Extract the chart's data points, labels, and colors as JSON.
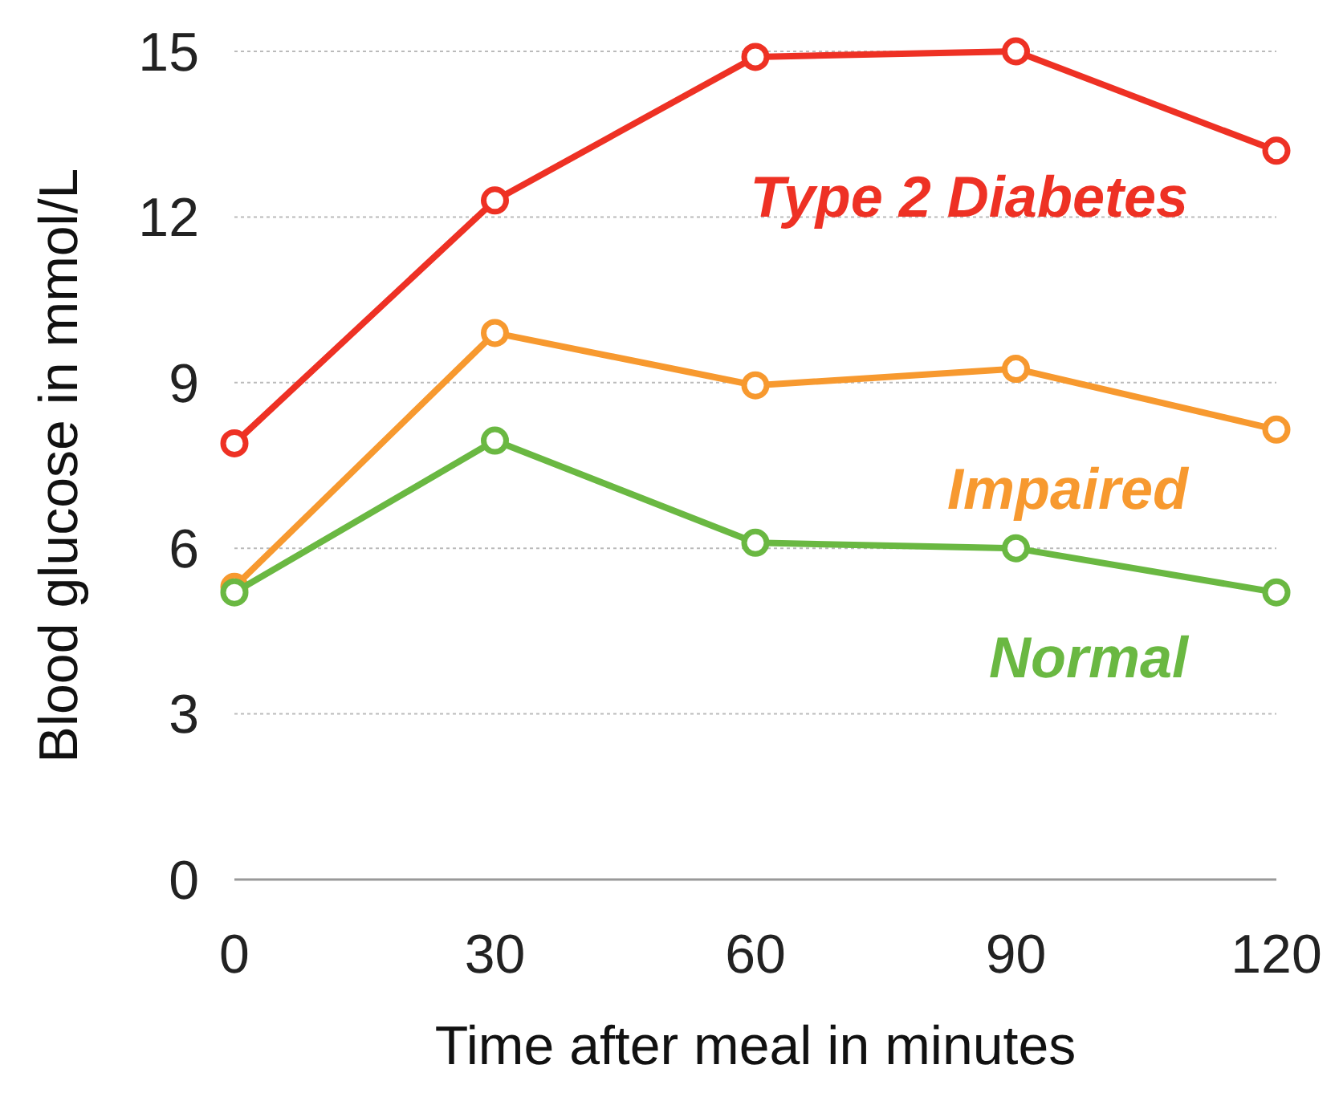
{
  "chart_data": {
    "type": "line",
    "xlabel": "Time after meal in minutes",
    "ylabel": "Blood glucose in mmol/L",
    "x": [
      0,
      30,
      60,
      90,
      120
    ],
    "series": [
      {
        "name": "Type 2 Diabetes",
        "color": "#ee3124",
        "values": [
          7.9,
          12.3,
          14.9,
          15.0,
          13.2
        ]
      },
      {
        "name": "Impaired",
        "color": "#f7992f",
        "values": [
          5.3,
          9.9,
          8.95,
          9.25,
          8.15
        ]
      },
      {
        "name": "Normal",
        "color": "#6ab842",
        "values": [
          5.2,
          7.95,
          6.1,
          6.0,
          5.2
        ]
      }
    ],
    "xlim": [
      0,
      120
    ],
    "xticks": [
      0,
      30,
      60,
      90,
      120
    ],
    "ylim": [
      0,
      15
    ],
    "yticks": [
      0,
      3,
      6,
      9,
      12,
      15
    ],
    "grid": "y",
    "marker": "circle",
    "line_style": "solid"
  }
}
